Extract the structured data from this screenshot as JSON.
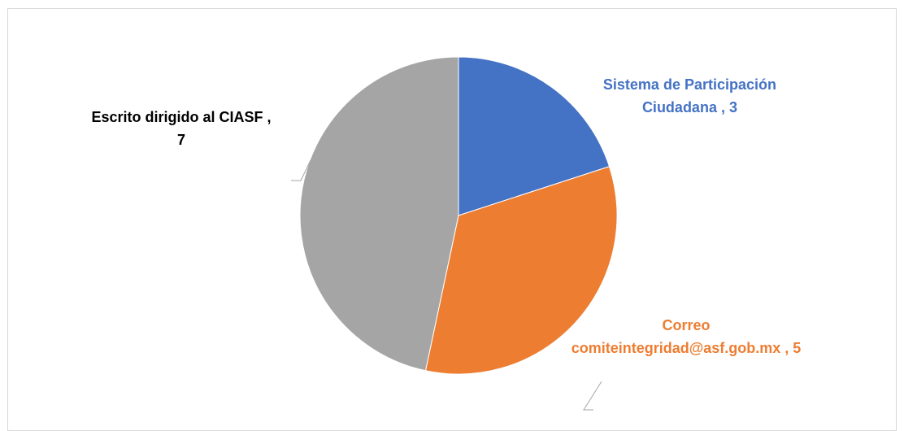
{
  "chart_data": {
    "type": "pie",
    "title": "",
    "slices": [
      {
        "label": "Sistema de Participación Ciudadana",
        "value": 3,
        "color": "#4472c4",
        "label_color": "#4472c4",
        "label_lines": [
          "Sistema de Participación",
          "Ciudadana , 3"
        ]
      },
      {
        "label": "Correo comiteintegridad@asf.gob.mx",
        "value": 5,
        "color": "#ed7d31",
        "label_color": "#ed7d31",
        "label_lines": [
          "Correo",
          "comiteintegridad@asf.gob.mx , 5"
        ]
      },
      {
        "label": "Escrito dirigido al CIASF",
        "value": 7,
        "color": "#a5a5a5",
        "label_color": "#000000",
        "label_lines": [
          "Escrito dirigido al CIASF ,",
          "7"
        ]
      }
    ],
    "legend": "none",
    "leader_lines_color": "#a6a6a6"
  }
}
